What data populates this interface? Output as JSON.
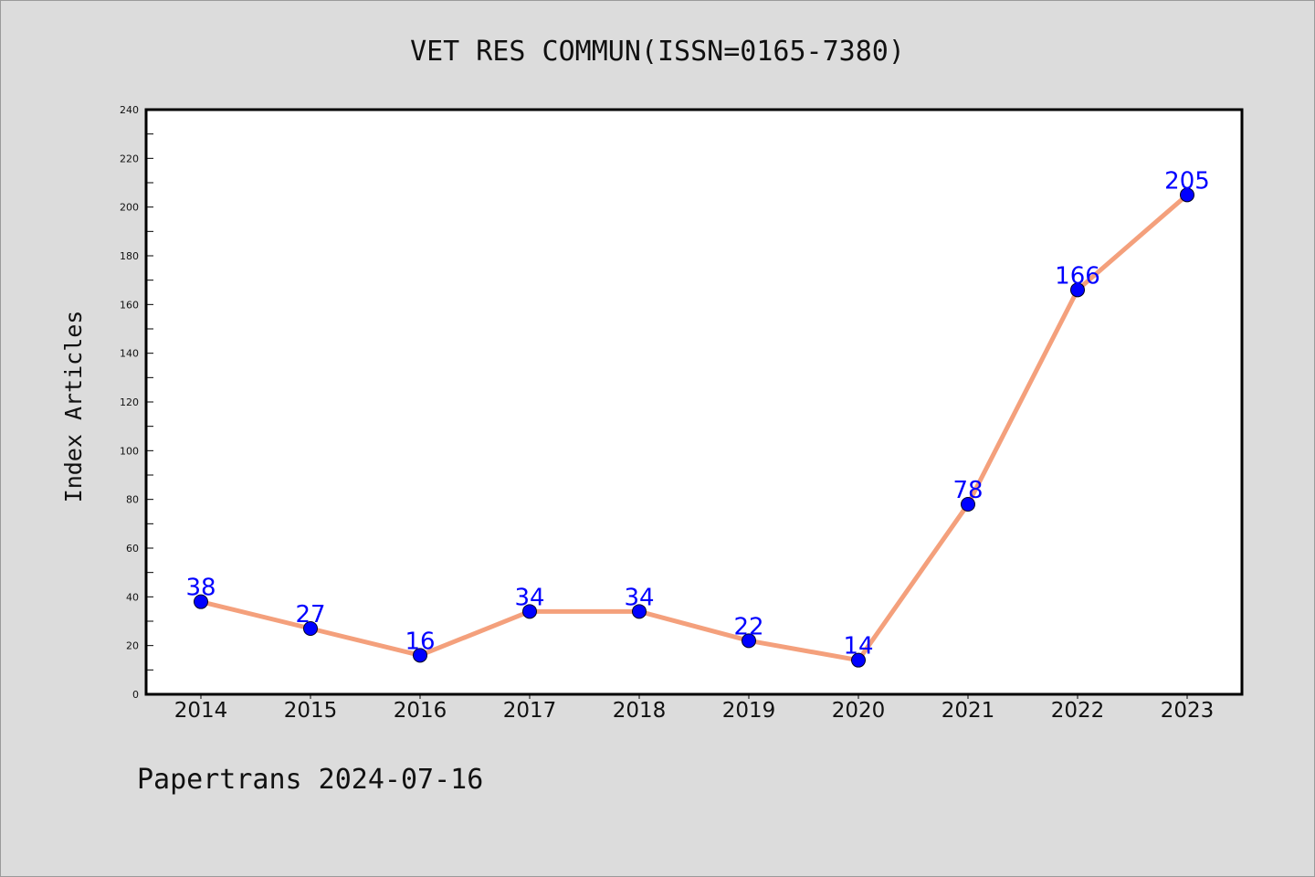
{
  "chart_data": {
    "type": "line",
    "title": "VET RES COMMUN(ISSN=0165-7380)",
    "xlabel": "",
    "ylabel": "Index Articles",
    "categories": [
      "2014",
      "2015",
      "2016",
      "2017",
      "2018",
      "2019",
      "2020",
      "2021",
      "2022",
      "2023"
    ],
    "series": [
      {
        "values": [
          38,
          27,
          16,
          34,
          34,
          22,
          14,
          78,
          166,
          205
        ]
      }
    ],
    "ylim": [
      0,
      240
    ],
    "yticks": [
      0,
      20,
      40,
      60,
      80,
      100,
      120,
      140,
      160,
      180,
      200,
      220,
      240
    ],
    "grid": false,
    "line_color": "#f4a07c",
    "marker_color": "#0000ff",
    "label_color": "#0000ff",
    "data_labels": true
  },
  "footer": "Papertrans 2024-07-16"
}
